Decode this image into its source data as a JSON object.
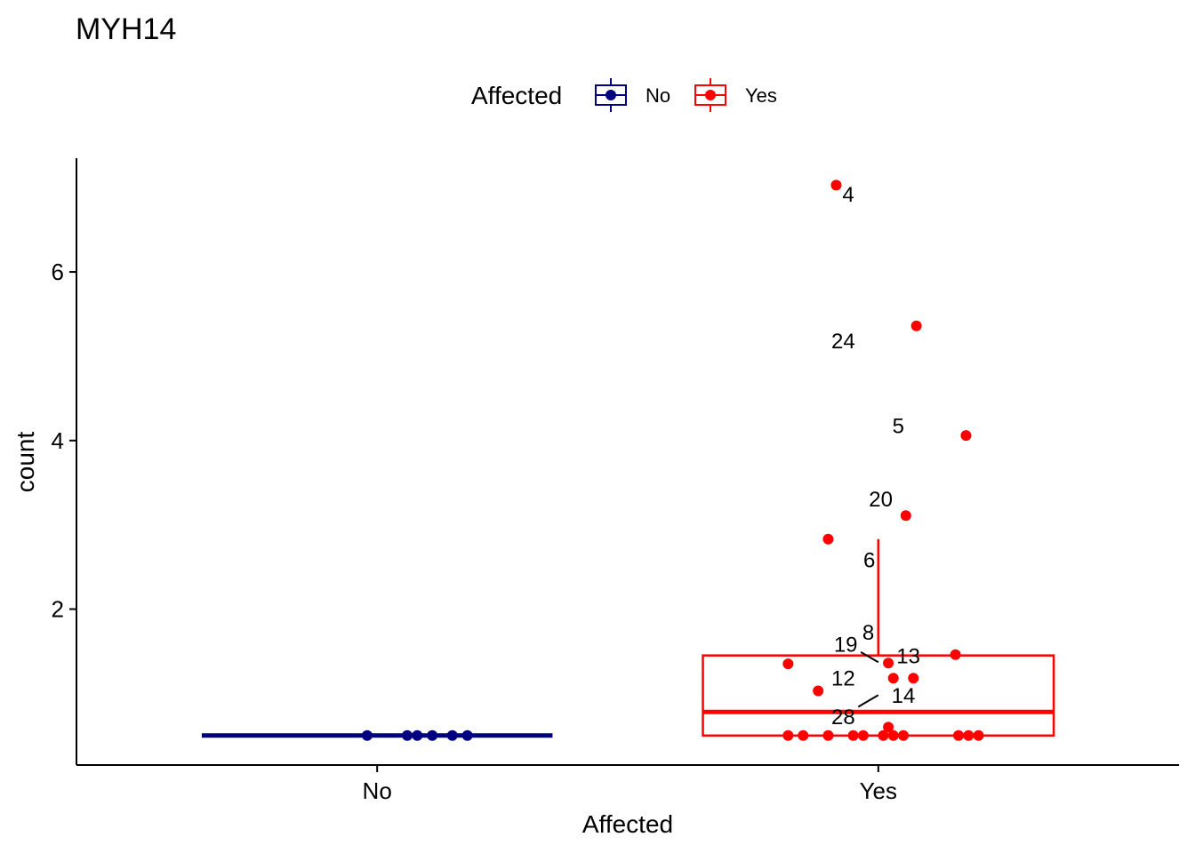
{
  "chart_data": {
    "type": "box",
    "title": "MYH14",
    "xlabel": "Affected",
    "ylabel": "count",
    "categories": [
      "No",
      "Yes"
    ],
    "ylim": [
      0.15,
      7.35
    ],
    "yticks": [
      2,
      4,
      6
    ],
    "grid": false,
    "legend": {
      "title": "Affected",
      "position": "top",
      "entries": [
        {
          "label": "No",
          "color": "#000080"
        },
        {
          "label": "Yes",
          "color": "#FF0000"
        }
      ]
    },
    "boxes": [
      {
        "category": "No",
        "color": "#000080",
        "min": 0.5,
        "q1": 0.5,
        "median": 0.5,
        "q3": 0.5,
        "max": 0.5
      },
      {
        "category": "Yes",
        "color": "#FF0000",
        "min": 0.5,
        "q1": 0.5,
        "median": 0.78,
        "q3": 1.45,
        "max": 2.83
      }
    ],
    "points": [
      {
        "category": "No",
        "x": 0.98,
        "y": 0.5
      },
      {
        "category": "No",
        "x": 1.06,
        "y": 0.5
      },
      {
        "category": "No",
        "x": 1.08,
        "y": 0.5
      },
      {
        "category": "No",
        "x": 1.11,
        "y": 0.5
      },
      {
        "category": "No",
        "x": 1.15,
        "y": 0.5
      },
      {
        "category": "No",
        "x": 1.18,
        "y": 0.5
      },
      {
        "category": "Yes",
        "x": 1.916,
        "y": 7.03,
        "label": "4",
        "lx": 1.94,
        "ly": 6.92
      },
      {
        "category": "Yes",
        "x": 2.076,
        "y": 5.36,
        "label": "24",
        "lx": 1.93,
        "ly": 5.18
      },
      {
        "category": "Yes",
        "x": 2.175,
        "y": 4.06,
        "label": "5",
        "lx": 2.04,
        "ly": 4.17
      },
      {
        "category": "Yes",
        "x": 2.055,
        "y": 3.11,
        "label": "20",
        "lx": 2.005,
        "ly": 3.3
      },
      {
        "category": "Yes",
        "x": 1.9,
        "y": 2.83,
        "label": "6",
        "lx": 1.982,
        "ly": 2.58
      },
      {
        "category": "Yes",
        "x": 2.154,
        "y": 1.46,
        "label": "8",
        "lx": 1.98,
        "ly": 1.72
      },
      {
        "category": "Yes",
        "x": 1.82,
        "y": 1.35
      },
      {
        "category": "Yes",
        "x": 2.02,
        "y": 1.36,
        "label": "13",
        "lx": 2.06,
        "ly": 1.44
      },
      {
        "category": "Yes",
        "x": 2.03,
        "y": 1.18,
        "label": "19",
        "lx": 1.935,
        "ly": 1.58
      },
      {
        "category": "Yes",
        "x": 2.07,
        "y": 1.18
      },
      {
        "category": "Yes",
        "x": 1.88,
        "y": 1.03,
        "label": "12",
        "lx": 1.93,
        "ly": 1.18
      },
      {
        "category": "Yes",
        "x": 2.02,
        "y": 0.6,
        "label": "14",
        "lx": 2.05,
        "ly": 0.97
      },
      {
        "category": "Yes",
        "x": 1.97,
        "y": 0.5,
        "label": "28",
        "lx": 1.93,
        "ly": 0.72
      },
      {
        "category": "Yes",
        "x": 1.82,
        "y": 0.5
      },
      {
        "category": "Yes",
        "x": 1.85,
        "y": 0.5
      },
      {
        "category": "Yes",
        "x": 1.9,
        "y": 0.5
      },
      {
        "category": "Yes",
        "x": 1.95,
        "y": 0.5
      },
      {
        "category": "Yes",
        "x": 2.01,
        "y": 0.5
      },
      {
        "category": "Yes",
        "x": 2.03,
        "y": 0.5
      },
      {
        "category": "Yes",
        "x": 2.05,
        "y": 0.5
      },
      {
        "category": "Yes",
        "x": 2.16,
        "y": 0.5
      },
      {
        "category": "Yes",
        "x": 2.18,
        "y": 0.5
      },
      {
        "category": "Yes",
        "x": 2.2,
        "y": 0.5
      }
    ]
  }
}
